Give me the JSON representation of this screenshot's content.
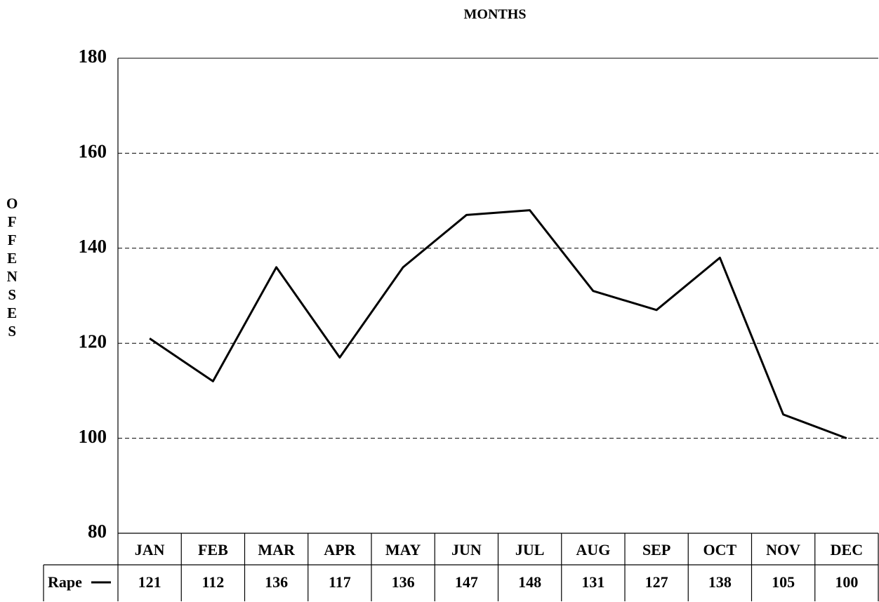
{
  "chart_data": {
    "type": "line",
    "title": "MONTHS",
    "y_label": "OFFENSES",
    "categories": [
      "JAN",
      "FEB",
      "MAR",
      "APR",
      "MAY",
      "JUN",
      "JUL",
      "AUG",
      "SEP",
      "OCT",
      "NOV",
      "DEC"
    ],
    "series": [
      {
        "name": "Rape",
        "color": "#000000",
        "values": [
          121,
          112,
          136,
          117,
          136,
          147,
          148,
          131,
          127,
          138,
          105,
          100
        ]
      }
    ],
    "ylim": [
      80,
      180
    ],
    "yticks": [
      80,
      100,
      120,
      140,
      160,
      180
    ],
    "grid": true
  }
}
